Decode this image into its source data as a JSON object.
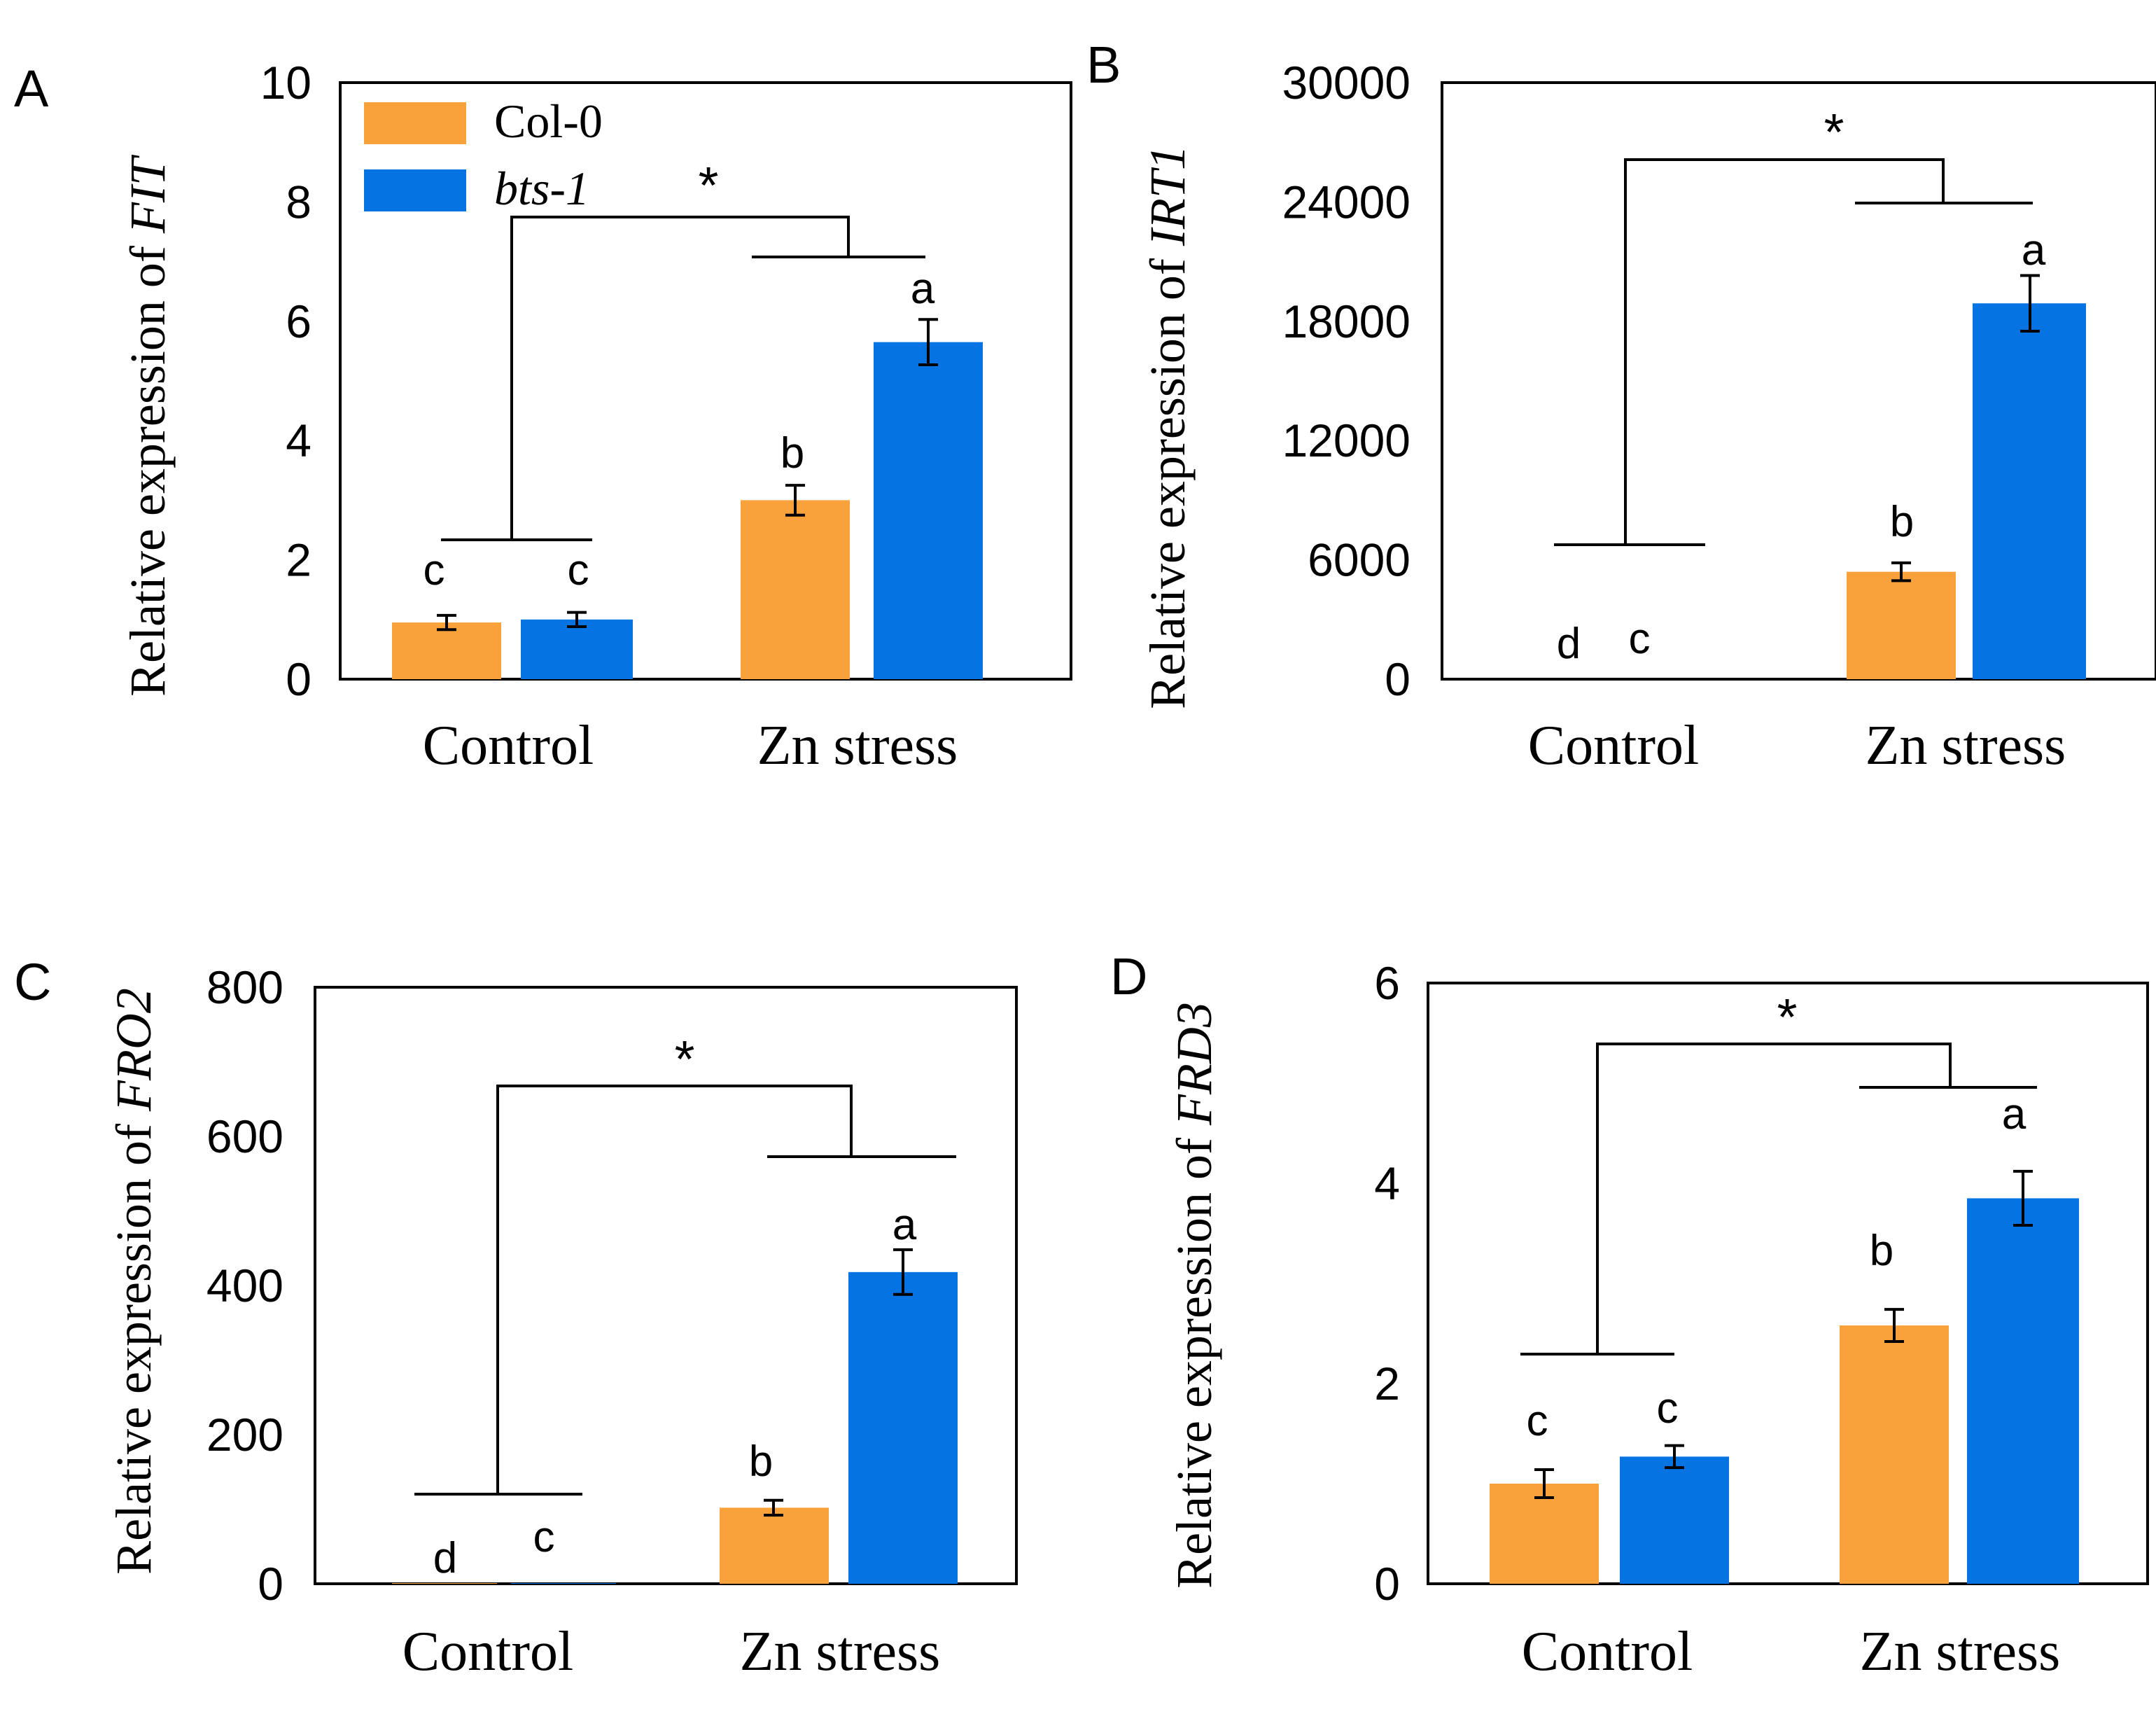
{
  "legend": {
    "items": [
      {
        "label": "Col-0",
        "color": "#F9A13A"
      },
      {
        "label": "bts-1",
        "color": "#0573E1"
      }
    ]
  },
  "chart_data": [
    {
      "panel": "A",
      "type": "bar",
      "ylabel_prefix": "Relative expression of ",
      "gene": "FIT",
      "categories": [
        "Control",
        "Zn stress"
      ],
      "ylim": [
        0,
        10
      ],
      "yticks": [
        "0",
        "2",
        "4",
        "6",
        "8",
        "10"
      ],
      "series": [
        {
          "name": "Col-0",
          "values": [
            0.95,
            3.0
          ],
          "errors": [
            0.12,
            0.25
          ],
          "letters": [
            "c",
            "b"
          ]
        },
        {
          "name": "bts-1",
          "values": [
            1.0,
            5.65
          ],
          "errors": [
            0.12,
            0.38
          ],
          "letters": [
            "c",
            "a"
          ]
        }
      ],
      "significance": "*",
      "grid": false
    },
    {
      "panel": "B",
      "type": "bar",
      "ylabel_prefix": "Relative expression of ",
      "gene": "IRT1",
      "categories": [
        "Control",
        "Zn stress"
      ],
      "ylim": [
        0,
        30000
      ],
      "yticks": [
        "0",
        "6000",
        "12000",
        "18000",
        "24000",
        "30000"
      ],
      "series": [
        {
          "name": "Col-0",
          "values": [
            1,
            5400
          ],
          "errors": [
            0,
            450
          ],
          "letters": [
            "d",
            "b"
          ]
        },
        {
          "name": "bts-1",
          "values": [
            1,
            18900
          ],
          "errors": [
            0,
            1400
          ],
          "letters": [
            "c",
            "a"
          ]
        }
      ],
      "significance": "*",
      "grid": false
    },
    {
      "panel": "C",
      "type": "bar",
      "ylabel_prefix": "Relative expression of ",
      "gene": "FRO2",
      "categories": [
        "Control",
        "Zn stress"
      ],
      "ylim": [
        0,
        800
      ],
      "yticks": [
        "0",
        "200",
        "400",
        "600",
        "800"
      ],
      "series": [
        {
          "name": "Col-0",
          "values": [
            1,
            102
          ],
          "errors": [
            0,
            10
          ],
          "letters": [
            "d",
            "b"
          ]
        },
        {
          "name": "bts-1",
          "values": [
            1,
            418
          ],
          "errors": [
            0,
            30
          ],
          "letters": [
            "c",
            "a"
          ]
        }
      ],
      "significance": "*",
      "grid": false
    },
    {
      "panel": "D",
      "type": "bar",
      "ylabel_prefix": "Relative expression of ",
      "gene": "FRD3",
      "categories": [
        "Control",
        "Zn stress"
      ],
      "ylim": [
        0,
        6
      ],
      "yticks": [
        "0",
        "2",
        "4",
        "6"
      ],
      "series": [
        {
          "name": "Col-0",
          "values": [
            1.0,
            2.58
          ],
          "errors": [
            0.14,
            0.16
          ],
          "letters": [
            "c",
            "b"
          ]
        },
        {
          "name": "bts-1",
          "values": [
            1.27,
            3.85
          ],
          "errors": [
            0.11,
            0.27
          ],
          "letters": [
            "c",
            "a"
          ]
        }
      ],
      "significance": "*",
      "grid": false
    }
  ]
}
